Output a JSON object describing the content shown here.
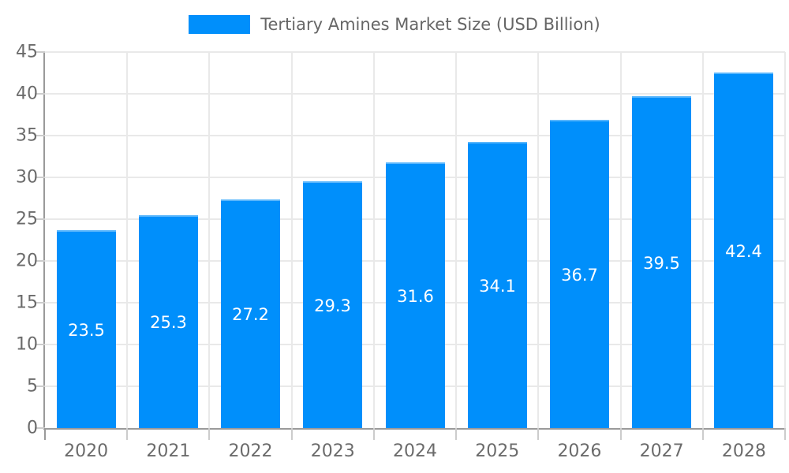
{
  "chart_data": {
    "type": "bar",
    "title": "Tertiary Amines Market Size (USD Billion)",
    "categories": [
      "2020",
      "2021",
      "2022",
      "2023",
      "2024",
      "2025",
      "2026",
      "2027",
      "2028"
    ],
    "values": [
      23.5,
      25.3,
      27.2,
      29.3,
      31.6,
      34.1,
      36.7,
      39.5,
      42.4
    ],
    "xlabel": "",
    "ylabel": "",
    "ylim": [
      0,
      45
    ],
    "ytick_step": 5,
    "ytick_labels": [
      "0",
      "5",
      "10",
      "15",
      "20",
      "25",
      "30",
      "35",
      "40",
      "45"
    ],
    "grid": true,
    "legend_position": "top",
    "data_label_position": "middle",
    "colors": {
      "bar": "#008FFB",
      "data_label": "#ffffff",
      "axis_text": "#6b6b6b",
      "legend_text": "#666666",
      "grid_line": "#e9e9e9",
      "axis_line": "#9a9a9a",
      "tick_mark": "#cccccc",
      "background": "#ffffff"
    }
  },
  "legend": {
    "label": "Tertiary Amines Market Size (USD Billion)"
  }
}
